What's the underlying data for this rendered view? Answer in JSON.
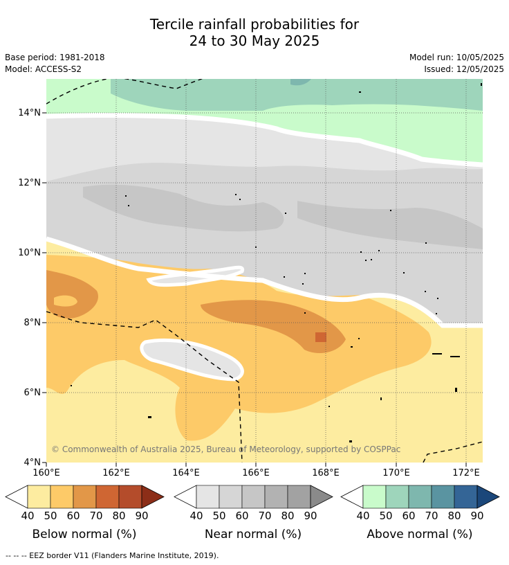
{
  "title": {
    "line1": "Tercile rainfall probabilities for",
    "line2": "24 to 30 May 2025"
  },
  "meta": {
    "base_period": "Base period: 1981-2018",
    "model": "Model: ACCESS-S2",
    "model_run": "Model run: 10/05/2025",
    "issued": "Issued: 12/05/2025"
  },
  "map": {
    "lon_labels": [
      "160°E",
      "162°E",
      "164°E",
      "166°E",
      "168°E",
      "170°E",
      "172°E"
    ],
    "lat_labels": [
      "4°N",
      "6°N",
      "8°N",
      "10°N",
      "12°N",
      "14°N"
    ],
    "lon_range": [
      160,
      172.5
    ],
    "lat_range": [
      4,
      15
    ],
    "copyright": "© Commonwealth of Australia 2025, Bureau of Meteorology, supported by COSPPac"
  },
  "colorbars": [
    {
      "label": "Below normal (%)",
      "ticks": [
        "40",
        "50",
        "60",
        "70",
        "80",
        "90"
      ],
      "colors": [
        "#fdeca0",
        "#fdca68",
        "#e29748",
        "#cf6633",
        "#b44c2b",
        "#8c2e18"
      ]
    },
    {
      "label": "Near normal (%)",
      "ticks": [
        "40",
        "50",
        "60",
        "70",
        "80",
        "90"
      ],
      "colors": [
        "#e5e5e5",
        "#d6d6d6",
        "#c6c6c6",
        "#b2b2b2",
        "#a2a2a2",
        "#8a8a8a"
      ]
    },
    {
      "label": "Above normal (%)",
      "ticks": [
        "40",
        "50",
        "60",
        "70",
        "80",
        "90"
      ],
      "colors": [
        "#c9fbcb",
        "#9ed5bb",
        "#7eb7ae",
        "#5a94a1",
        "#346596",
        "#1b477a"
      ]
    }
  ],
  "legend": {
    "eez": "-- -- -- EEZ border V11 (Flanders Marine Institute, 2019)."
  }
}
